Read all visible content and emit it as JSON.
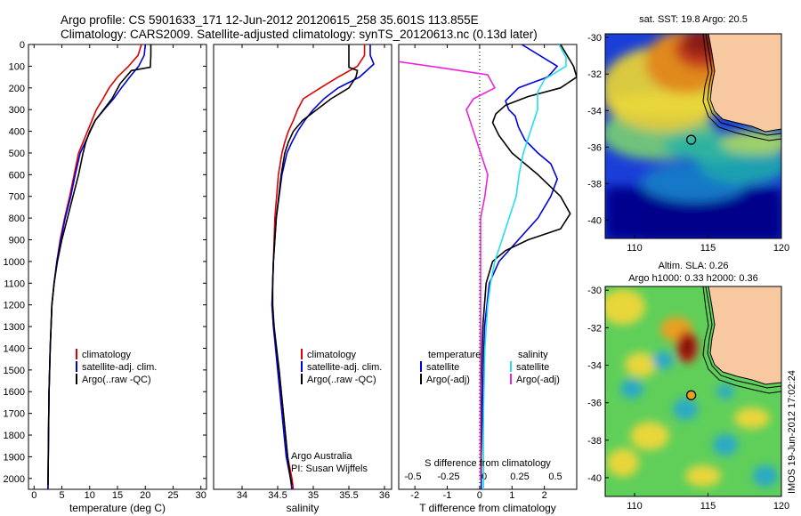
{
  "title": {
    "line1": "Argo profile: CS 5901633_171 12-Jun-2012 20120615_258 35.601S 113.855E",
    "line2": "Climatology: CARS2009. Satellite-adjusted climatology: synTS_20120613.nc (0.13d later)"
  },
  "colors": {
    "red": "#dd0000",
    "blue": "#0000dd",
    "black": "#000000",
    "cyan": "#22e0e8",
    "magenta": "#ee22dd"
  },
  "chart_data": [
    {
      "type": "line",
      "id": "temperature",
      "xlabel": "temperature (deg C)",
      "xlim": [
        -1,
        31
      ],
      "ylim": [
        2050,
        0
      ],
      "xticks": [
        0,
        5,
        10,
        15,
        20,
        25,
        30
      ],
      "yticks": [
        0,
        100,
        200,
        300,
        400,
        500,
        600,
        700,
        800,
        900,
        1000,
        1100,
        1200,
        1300,
        1400,
        1500,
        1600,
        1700,
        1800,
        1900,
        2000
      ],
      "legend": [
        "climatology",
        "satellite-adj. clim.",
        "Argo(..raw -QC)"
      ],
      "series": [
        {
          "name": "climatology",
          "color": "red",
          "x": [
            19.3,
            18.7,
            17.0,
            15.0,
            13.5,
            12.4,
            11.2,
            10.4,
            9.6,
            8.8,
            8.0,
            7.2,
            6.4,
            5.5,
            4.7,
            4.1,
            3.6,
            3.2,
            2.9,
            2.7,
            2.6,
            2.5
          ],
          "y": [
            0,
            50,
            100,
            150,
            200,
            250,
            300,
            350,
            400,
            450,
            500,
            600,
            700,
            800,
            900,
            1000,
            1100,
            1200,
            1400,
            1600,
            1800,
            2050
          ]
        },
        {
          "name": "satellite-adj. clim.",
          "color": "blue",
          "x": [
            20.0,
            19.8,
            18.8,
            17.2,
            15.7,
            14.3,
            12.6,
            11.0,
            10.1,
            9.2,
            8.3,
            7.4,
            6.6,
            5.6,
            4.8,
            4.1,
            3.6,
            3.2,
            2.9,
            2.7,
            2.6,
            2.5
          ],
          "y": [
            0,
            50,
            100,
            150,
            200,
            250,
            300,
            350,
            400,
            450,
            500,
            600,
            700,
            800,
            900,
            1000,
            1100,
            1200,
            1400,
            1600,
            1800,
            2050
          ]
        },
        {
          "name": "Argo(..raw -QC)",
          "color": "black",
          "x": [
            21.0,
            21.0,
            20.9,
            17.5,
            15.5,
            14.0,
            12.5,
            11.0,
            10.0,
            9.3,
            8.8,
            8.0,
            7.0,
            6.0,
            5.0,
            4.2,
            3.6,
            3.2,
            2.9,
            2.7,
            2.6,
            2.5
          ],
          "y": [
            0,
            50,
            105,
            120,
            180,
            250,
            300,
            350,
            400,
            450,
            500,
            600,
            700,
            800,
            900,
            1000,
            1100,
            1200,
            1400,
            1600,
            1800,
            2030
          ]
        }
      ]
    },
    {
      "type": "line",
      "id": "salinity",
      "xlabel": "salinity",
      "xlim": [
        33.6,
        36.1
      ],
      "ylim": [
        2050,
        0
      ],
      "xticks": [
        34,
        34.5,
        35,
        35.5,
        36
      ],
      "legend": [
        "climatology",
        "satellite-adj. clim.",
        "Argo(..raw -QC)"
      ],
      "annotation": [
        "Argo Australia",
        "PI: Susan Wijffels"
      ],
      "series": [
        {
          "name": "climatology",
          "color": "red",
          "x": [
            35.72,
            35.72,
            35.62,
            35.35,
            35.1,
            34.86,
            34.78,
            34.72,
            34.65,
            34.6,
            34.56,
            34.51,
            34.46,
            34.44,
            34.43,
            34.42,
            34.44,
            34.52,
            34.58,
            34.64,
            34.7,
            34.72
          ],
          "y": [
            0,
            50,
            100,
            150,
            200,
            250,
            300,
            350,
            400,
            450,
            500,
            600,
            800,
            1000,
            1100,
            1200,
            1300,
            1500,
            1700,
            1900,
            2000,
            2050
          ]
        },
        {
          "name": "satellite-adj. clim.",
          "color": "blue",
          "x": [
            35.8,
            35.8,
            35.85,
            35.65,
            35.35,
            35.15,
            35.0,
            34.88,
            34.78,
            34.7,
            34.63,
            34.56,
            34.48,
            34.44,
            34.43,
            34.42,
            34.44,
            34.5,
            34.56,
            34.62,
            34.68,
            34.7
          ],
          "y": [
            0,
            50,
            90,
            150,
            200,
            250,
            300,
            350,
            400,
            450,
            500,
            600,
            800,
            1000,
            1100,
            1200,
            1300,
            1500,
            1700,
            1900,
            2000,
            2050
          ]
        },
        {
          "name": "Argo(..raw -QC)",
          "color": "black",
          "x": [
            35.5,
            35.5,
            35.5,
            35.62,
            35.6,
            35.5,
            35.25,
            34.85,
            34.72,
            34.65,
            34.6,
            34.55,
            34.48,
            34.44,
            34.43,
            34.43,
            34.45,
            34.52,
            34.58,
            34.64,
            34.68,
            34.7
          ],
          "y": [
            0,
            50,
            105,
            120,
            150,
            200,
            250,
            350,
            400,
            450,
            500,
            600,
            800,
            1000,
            1100,
            1200,
            1300,
            1500,
            1700,
            1900,
            2000,
            2030
          ]
        }
      ]
    },
    {
      "type": "line",
      "id": "differences",
      "xlabel": "T difference from climatology",
      "xlim": [
        -2.5,
        3
      ],
      "ylim": [
        2050,
        0
      ],
      "xticks": [
        -2,
        -1,
        0,
        1,
        2
      ],
      "x2label": "S difference from climatology",
      "x2ticks": [
        -0.5,
        -0.25,
        0,
        0.25,
        0.5
      ],
      "legend_headers": [
        "temperature",
        "salinity"
      ],
      "legend": [
        "satellite",
        "Argo(-adj)",
        "satellite",
        "Argo(-adj)"
      ],
      "series": [
        {
          "name": "temperature satellite",
          "color": "blue",
          "x": [
            1.3,
            2.4,
            2.1,
            1.2,
            1.0,
            0.8,
            0.9,
            1.1,
            1.2,
            1.4,
            1.8,
            2.2,
            2.4,
            2.2,
            1.8,
            1.2,
            0.6,
            0.3,
            0.15,
            0.1,
            0.05,
            0.05
          ],
          "y": [
            0,
            100,
            150,
            200,
            230,
            260,
            300,
            330,
            380,
            440,
            500,
            550,
            620,
            700,
            800,
            900,
            1000,
            1100,
            1300,
            1600,
            1900,
            2050
          ]
        },
        {
          "name": "temperature Argo(-adj)",
          "color": "black",
          "x": [
            2.5,
            2.9,
            3.0,
            2.5,
            1.5,
            0.8,
            0.5,
            0.4,
            0.6,
            1.0,
            1.8,
            2.5,
            2.8,
            2.5,
            1.5,
            0.8,
            0.4,
            0.2,
            0.1,
            0.05,
            0.05
          ],
          "y": [
            0,
            100,
            150,
            200,
            240,
            280,
            320,
            360,
            420,
            500,
            600,
            700,
            780,
            850,
            900,
            950,
            1000,
            1100,
            1300,
            1600,
            2000
          ]
        },
        {
          "name": "salinity satellite",
          "color": "cyan",
          "x": [
            0.5,
            0.55,
            0.55,
            0.4,
            0.35,
            0.35,
            0.3,
            0.25,
            0.22,
            0.2,
            0.15,
            0.1,
            0.05,
            0.02,
            0.0,
            -0.02,
            -0.03,
            -0.03
          ],
          "y": [
            0,
            60,
            100,
            160,
            220,
            300,
            400,
            500,
            600,
            700,
            800,
            900,
            1000,
            1100,
            1200,
            1400,
            1700,
            2050
          ]
        },
        {
          "name": "salinity Argo(-adj)",
          "color": "magenta",
          "x": [
            -0.72,
            -0.72,
            -0.3,
            0.0,
            0.05,
            -0.1,
            -0.15,
            -0.1,
            -0.05,
            0.0,
            -0.02,
            -0.05,
            -0.05,
            -0.05,
            -0.05,
            -0.05,
            -0.05
          ],
          "y": [
            0,
            70,
            110,
            140,
            200,
            250,
            300,
            400,
            500,
            600,
            700,
            800,
            1000,
            1200,
            1500,
            1800,
            2000
          ]
        }
      ]
    },
    {
      "type": "heatmap",
      "id": "sst-map",
      "title": "sat. SST: 19.8 Argo: 20.5",
      "xlim": [
        108,
        120
      ],
      "ylim": [
        -41,
        -29.8
      ],
      "xticks": [
        110,
        115,
        120
      ],
      "yticks": [
        -30,
        -32,
        -34,
        -36,
        -38,
        -40
      ],
      "marker": {
        "lon": 113.855,
        "lat": -35.601
      }
    },
    {
      "type": "heatmap",
      "id": "sla-map",
      "title": [
        "Altim. SLA: 0.26",
        "Argo h1000: 0.33 h2000: 0.36"
      ],
      "xlim": [
        108,
        120
      ],
      "ylim": [
        -41,
        -29.8
      ],
      "xticks": [
        110,
        115,
        120
      ],
      "yticks": [
        -30,
        -32,
        -34,
        -36,
        -38,
        -40
      ],
      "marker": {
        "lon": 113.855,
        "lat": -35.601
      }
    }
  ],
  "footer": "IMOS 19-Jun-2012 17:02:24"
}
